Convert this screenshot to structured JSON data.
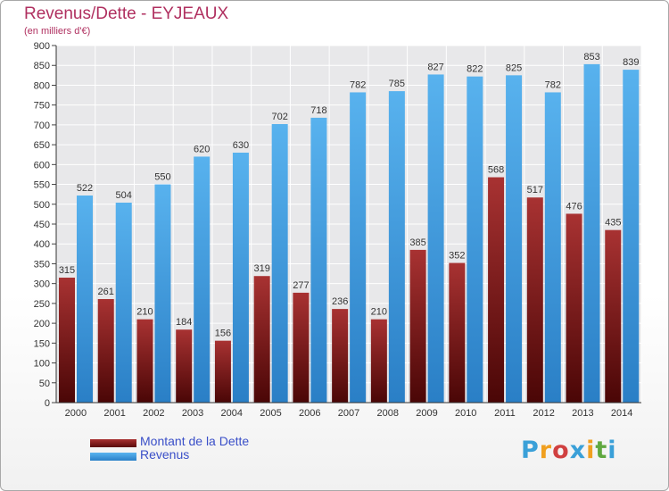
{
  "header": {
    "title": "Revenus/Dette - EYJEAUX",
    "subtitle": "(en milliers d'€)"
  },
  "legend": {
    "debt_label": "Montant de la Dette",
    "revenue_label": "Revenus"
  },
  "logo": {
    "letters": [
      "P",
      "r",
      "o",
      "x",
      "i",
      "t",
      "i"
    ],
    "colors": [
      "#3aa0d8",
      "#f0a020",
      "#d04040",
      "#3aa0d8",
      "#f0a020",
      "#60a840",
      "#3aa0d8"
    ]
  },
  "colors": {
    "debt": "#8b1e1e",
    "revenue": "#3a9be0",
    "title": "#b03060",
    "legend_text": "#3a4fc8"
  },
  "chart_data": {
    "type": "bar",
    "title": "Revenus/Dette - EYJEAUX",
    "subtitle": "(en milliers d'€)",
    "categories": [
      "2000",
      "2001",
      "2002",
      "2003",
      "2004",
      "2005",
      "2006",
      "2007",
      "2008",
      "2009",
      "2010",
      "2011",
      "2012",
      "2013",
      "2014"
    ],
    "series": [
      {
        "name": "Montant de la Dette",
        "values": [
          315,
          261,
          210,
          184,
          156,
          319,
          277,
          236,
          210,
          385,
          352,
          568,
          517,
          476,
          435
        ]
      },
      {
        "name": "Revenus",
        "values": [
          522,
          504,
          550,
          620,
          630,
          702,
          718,
          782,
          785,
          827,
          822,
          825,
          782,
          853,
          839
        ]
      }
    ],
    "ylim": [
      0,
      900
    ],
    "yticks": [
      0,
      50,
      100,
      150,
      200,
      250,
      300,
      350,
      400,
      450,
      500,
      550,
      600,
      650,
      700,
      750,
      800,
      850,
      900
    ],
    "grid": true,
    "legend_position": "bottom-left"
  }
}
